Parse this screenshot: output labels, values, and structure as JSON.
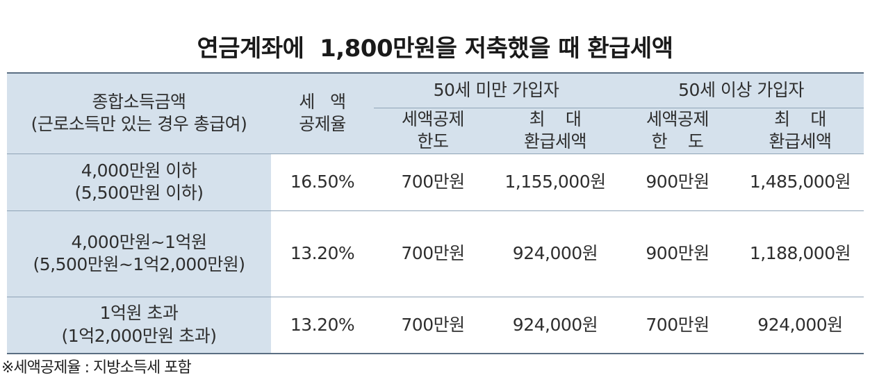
{
  "title": "연금계좌에  1,800만원을 저축했을 때 환급세액",
  "table": {
    "header": {
      "income_line1": "종합소득금액",
      "income_line2": "(근로소득만 있는 경우 총급여)",
      "rate_line1": "세   액",
      "rate_line2": "공제율",
      "group_under50": "50세 미만 가입자",
      "group_over50": "50세 이상 가입자",
      "under50_limit_line1": "세액공제",
      "under50_limit_line2": "한도",
      "under50_max_line1": "최    대",
      "under50_max_line2": "환급세액",
      "over50_limit_line1": "세액공제",
      "over50_limit_line2": "한    도",
      "over50_max_line1": "최    대",
      "over50_max_line2": "환급세액"
    },
    "rows": [
      {
        "income_line1": "4,000만원 이하",
        "income_line2": "(5,500만원 이하)",
        "rate": "16.50%",
        "under50_limit": "700만원",
        "under50_max": "1,155,000원",
        "over50_limit": "900만원",
        "over50_max": "1,485,000원"
      },
      {
        "income_line1": "4,000만원~1억원",
        "income_line2": "(5,500만원~1억2,000만원)",
        "rate": "13.20%",
        "under50_limit": "700만원",
        "under50_max": "924,000원",
        "over50_limit": "900만원",
        "over50_max": "1,188,000원"
      },
      {
        "income_line1": "1억원 초과",
        "income_line2": "(1억2,000만원 초과)",
        "rate": "13.20%",
        "under50_limit": "700만원",
        "under50_max": "924,000원",
        "over50_limit": "700만원",
        "over50_max": "924,000원"
      }
    ]
  },
  "footnote": "※세액공제율 : 지방소득세 포함",
  "colors": {
    "header_bg": "#d5e1ec",
    "rule_dark": "#5a6e82",
    "rule_light": "#8fa3b6"
  }
}
